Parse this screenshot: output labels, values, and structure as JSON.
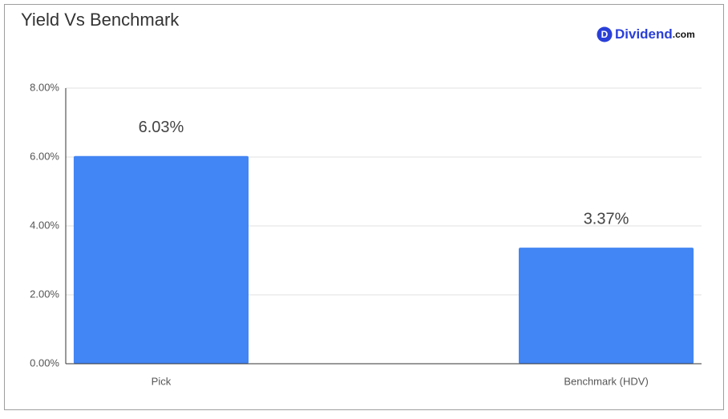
{
  "chart_data": {
    "type": "bar",
    "title": "Yield Vs Benchmark",
    "categories": [
      "Pick",
      "Benchmark (HDV)"
    ],
    "values": [
      6.03,
      3.37
    ],
    "value_labels": [
      "6.03%",
      "3.37%"
    ],
    "color": "#4285f4",
    "ylim": [
      0,
      8
    ],
    "yticks": [
      {
        "value": 0,
        "label": "0.00%"
      },
      {
        "value": 2,
        "label": "2.00%"
      },
      {
        "value": 4,
        "label": "4.00%"
      },
      {
        "value": 6,
        "label": "6.00%"
      },
      {
        "value": 8,
        "label": "8.00%"
      }
    ],
    "grid": true
  },
  "logo": {
    "icon": "D",
    "name": "Dividend",
    "suffix": ".com"
  }
}
